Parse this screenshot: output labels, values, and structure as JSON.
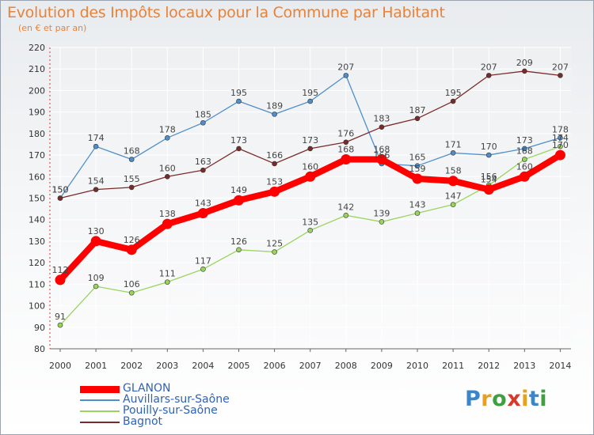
{
  "chart_data": {
    "type": "line",
    "title": "Evolution des Impôts locaux pour la Commune par Habitant",
    "subtitle": "(en € et par an)",
    "x": [
      "2000",
      "2001",
      "2002",
      "2003",
      "2004",
      "2005",
      "2006",
      "2007",
      "2008",
      "2009",
      "2010",
      "2011",
      "2012",
      "2013",
      "2014"
    ],
    "yticks": [
      80,
      90,
      100,
      110,
      120,
      130,
      140,
      150,
      160,
      170,
      180,
      190,
      200,
      210,
      220
    ],
    "ylim": [
      80,
      220
    ],
    "grid": true,
    "legend_position": "bottom-left",
    "series": [
      {
        "name": "GLANON",
        "color": "#ff0000",
        "emphasis": true,
        "values": [
          112,
          130,
          126,
          138,
          143,
          149,
          153,
          160,
          168,
          168,
          159,
          158,
          154,
          160,
          170
        ]
      },
      {
        "name": "Auvillars-sur-Saône",
        "color": "#4f8ec9",
        "emphasis": false,
        "values": [
          150,
          174,
          168,
          178,
          185,
          195,
          189,
          195,
          207,
          166,
          165,
          171,
          170,
          173,
          178
        ]
      },
      {
        "name": "Pouilly-sur-Saône",
        "color": "#9ad45c",
        "emphasis": false,
        "values": [
          91,
          109,
          106,
          111,
          117,
          126,
          125,
          135,
          142,
          139,
          143,
          147,
          156,
          168,
          174
        ]
      },
      {
        "name": "Bagnot",
        "color": "#7a2a2a",
        "emphasis": false,
        "values": [
          150,
          154,
          155,
          160,
          163,
          173,
          166,
          173,
          176,
          183,
          187,
          195,
          207,
          209,
          207
        ]
      }
    ]
  },
  "logo": {
    "letters": [
      "P",
      "r",
      "o",
      "x",
      "i",
      "t",
      "i"
    ],
    "colors": [
      "#3b86c8",
      "#e8a020",
      "#3fa040",
      "#d63a2a",
      "#e8a020",
      "#3b86c8",
      "#3fa040"
    ]
  }
}
